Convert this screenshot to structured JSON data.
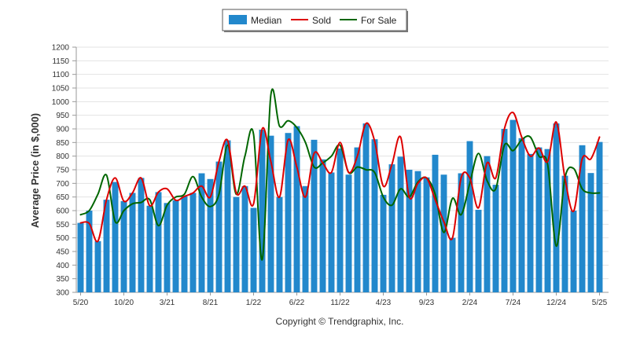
{
  "chart_data": {
    "type": "bar",
    "ylabel": "Average Price (in $,000)",
    "xlabel": "",
    "credit": "Copyright © Trendgraphix, Inc.",
    "ylim": [
      300,
      1200
    ],
    "y_ticks": [
      300,
      350,
      400,
      450,
      500,
      550,
      600,
      650,
      700,
      750,
      800,
      850,
      900,
      950,
      1000,
      1050,
      1100,
      1150,
      1200
    ],
    "grid": true,
    "legend_position": "top-center",
    "x_tick_labels": [
      {
        "index": 0,
        "label": "5/20"
      },
      {
        "index": 5,
        "label": "10/20"
      },
      {
        "index": 10,
        "label": "3/21"
      },
      {
        "index": 15,
        "label": "8/21"
      },
      {
        "index": 20,
        "label": "1/22"
      },
      {
        "index": 25,
        "label": "6/22"
      },
      {
        "index": 30,
        "label": "11/22"
      },
      {
        "index": 35,
        "label": "4/23"
      },
      {
        "index": 40,
        "label": "9/23"
      },
      {
        "index": 45,
        "label": "2/24"
      },
      {
        "index": 50,
        "label": "7/24"
      },
      {
        "index": 55,
        "label": "12/24"
      },
      {
        "index": 60,
        "label": "5/25"
      }
    ],
    "series": [
      {
        "name": "Median",
        "type": "bar",
        "color": "#2288cc",
        "values": [
          555,
          600,
          488,
          640,
          705,
          635,
          665,
          720,
          618,
          668,
          628,
          638,
          652,
          665,
          737,
          716,
          780,
          858,
          650,
          690,
          610,
          897,
          875,
          650,
          885,
          910,
          690,
          860,
          788,
          740,
          828,
          732,
          832,
          920,
          862,
          658,
          770,
          798,
          750,
          745,
          722,
          805,
          732,
          500,
          737,
          855,
          603,
          800,
          695,
          900,
          933,
          866,
          808,
          832,
          826,
          920,
          728,
          600,
          840,
          738,
          852
        ]
      },
      {
        "name": "Sold",
        "type": "line",
        "color": "#dd0000",
        "values": [
          555,
          553,
          488,
          640,
          720,
          635,
          665,
          720,
          618,
          668,
          680,
          638,
          652,
          665,
          690,
          650,
          780,
          858,
          665,
          690,
          625,
          900,
          780,
          650,
          860,
          760,
          650,
          810,
          775,
          740,
          850,
          740,
          800,
          920,
          855,
          690,
          770,
          870,
          650,
          700,
          720,
          640,
          560,
          500,
          720,
          720,
          610,
          775,
          720,
          900,
          960,
          870,
          800,
          830,
          780,
          925,
          720,
          598,
          790,
          790,
          870
        ]
      },
      {
        "name": "For Sale",
        "type": "line",
        "color": "#006600",
        "values": [
          585,
          600,
          660,
          730,
          560,
          600,
          625,
          630,
          640,
          545,
          620,
          650,
          660,
          725,
          650,
          615,
          660,
          840,
          660,
          800,
          880,
          420,
          1025,
          910,
          930,
          905,
          850,
          760,
          775,
          800,
          840,
          740,
          760,
          750,
          740,
          650,
          620,
          680,
          650,
          705,
          720,
          660,
          520,
          645,
          585,
          700,
          810,
          710,
          680,
          840,
          820,
          860,
          870,
          800,
          770,
          470,
          720,
          755,
          680,
          665,
          665
        ]
      }
    ]
  }
}
